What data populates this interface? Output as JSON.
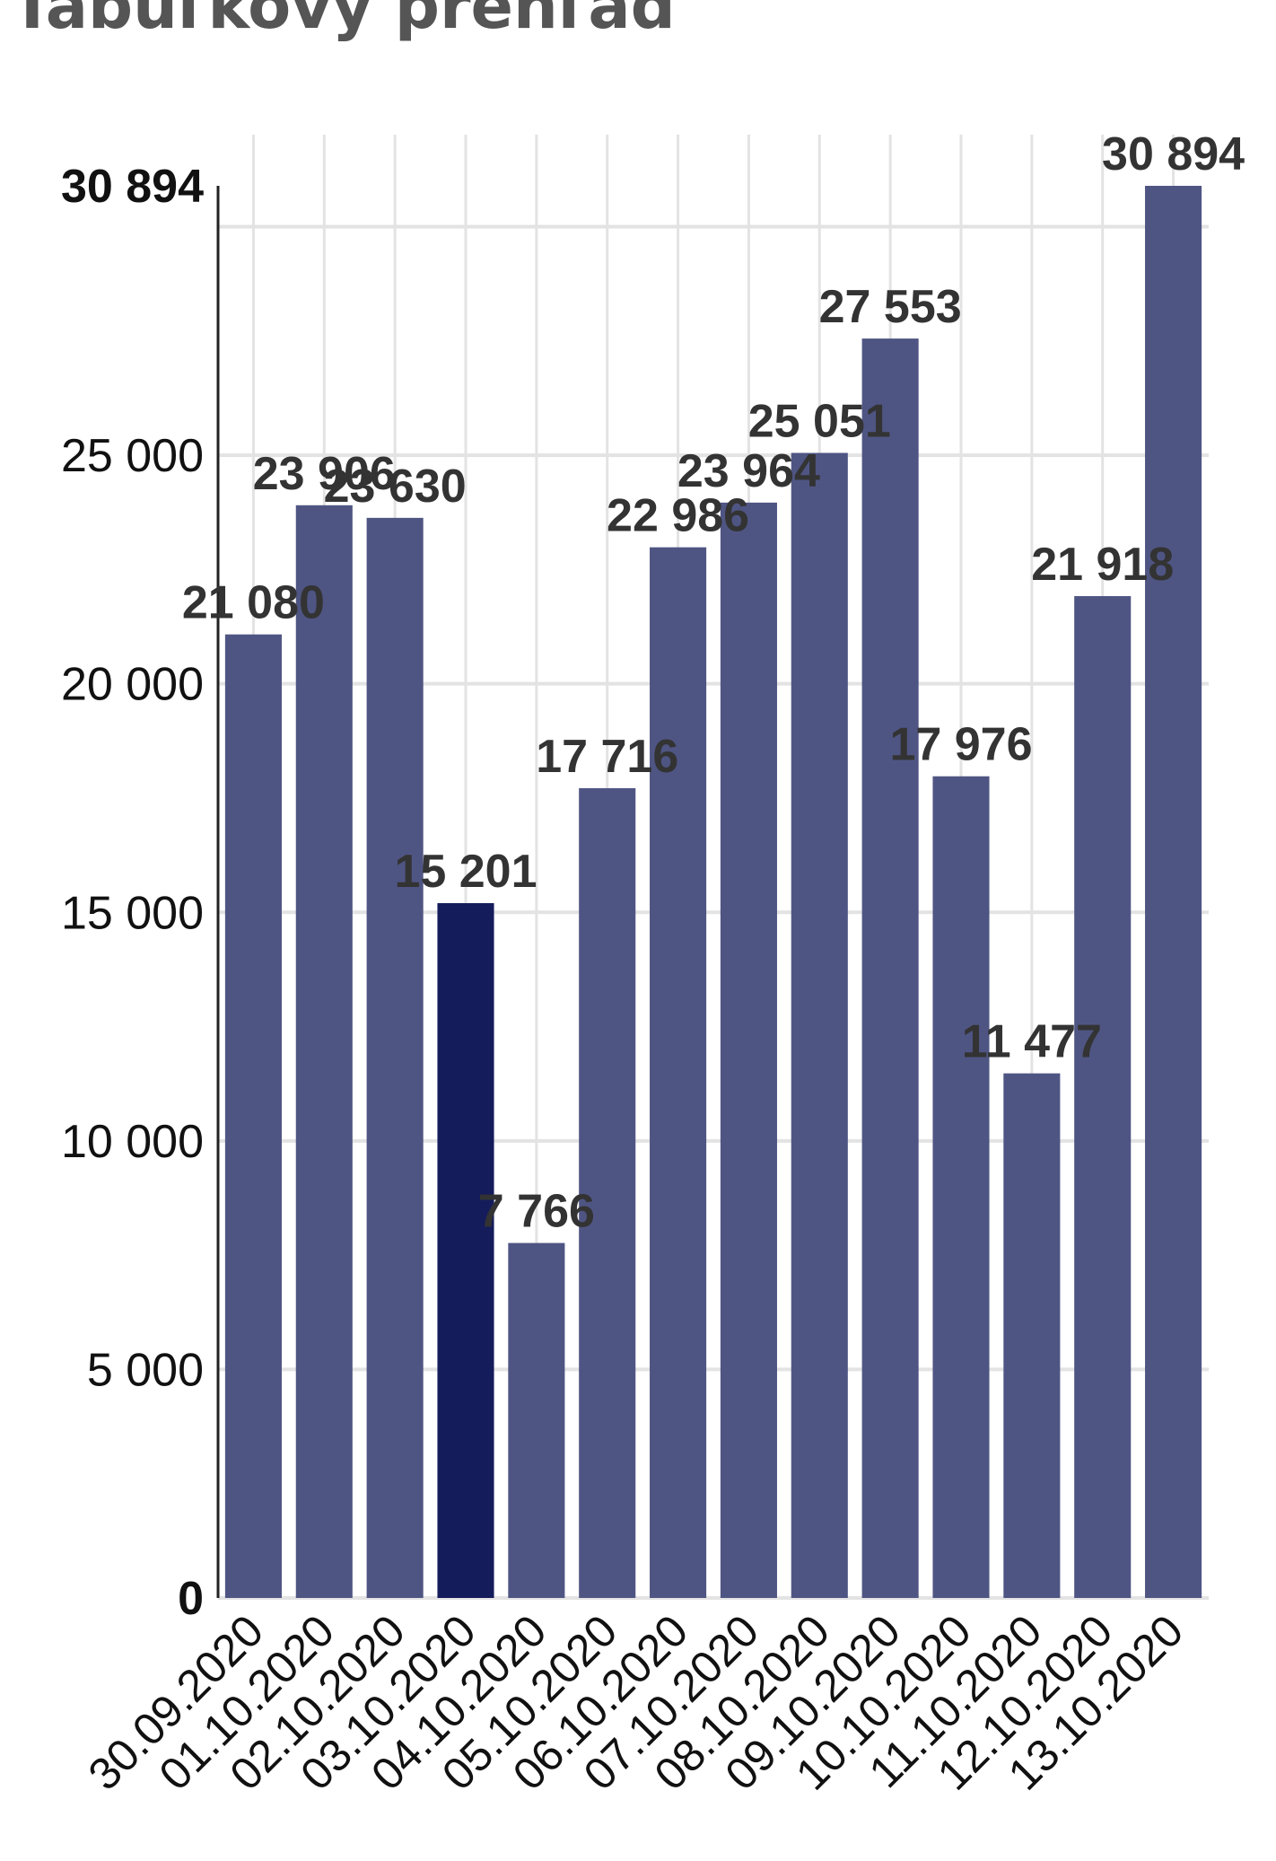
{
  "header": {
    "title": "Tabuľkový prehľad"
  },
  "chart_data": {
    "type": "bar",
    "categories": [
      "30.09.2020",
      "01.10.2020",
      "02.10.2020",
      "03.10.2020",
      "04.10.2020",
      "05.10.2020",
      "06.10.2020",
      "07.10.2020",
      "08.10.2020",
      "09.10.2020",
      "10.10.2020",
      "11.10.2020",
      "12.10.2020",
      "13.10.2020"
    ],
    "values": [
      21080,
      23906,
      23630,
      15201,
      7766,
      17716,
      22986,
      23964,
      25051,
      27553,
      17976,
      11477,
      21918,
      30894
    ],
    "value_labels": [
      "21 080",
      "23 906",
      "23 630",
      "15 201",
      "7 766",
      "17 716",
      "22 986",
      "23 964",
      "25 051",
      "27 553",
      "17 976",
      "11 477",
      "21 918",
      "30 894"
    ],
    "highlighted_index": 3,
    "ylim": [
      0,
      30894
    ],
    "yticks": [
      0,
      5000,
      10000,
      15000,
      20000,
      25000,
      30894
    ],
    "ytick_labels": [
      "0",
      "5 000",
      "10 000",
      "15 000",
      "20 000",
      "25 000",
      "30 894"
    ],
    "bold_ticks": [
      0,
      30894
    ],
    "grid": true,
    "colors": {
      "bar": "#4f5583",
      "highlight": "#151c5b",
      "grid": "#e3e3e3",
      "axis": "#222222"
    }
  }
}
